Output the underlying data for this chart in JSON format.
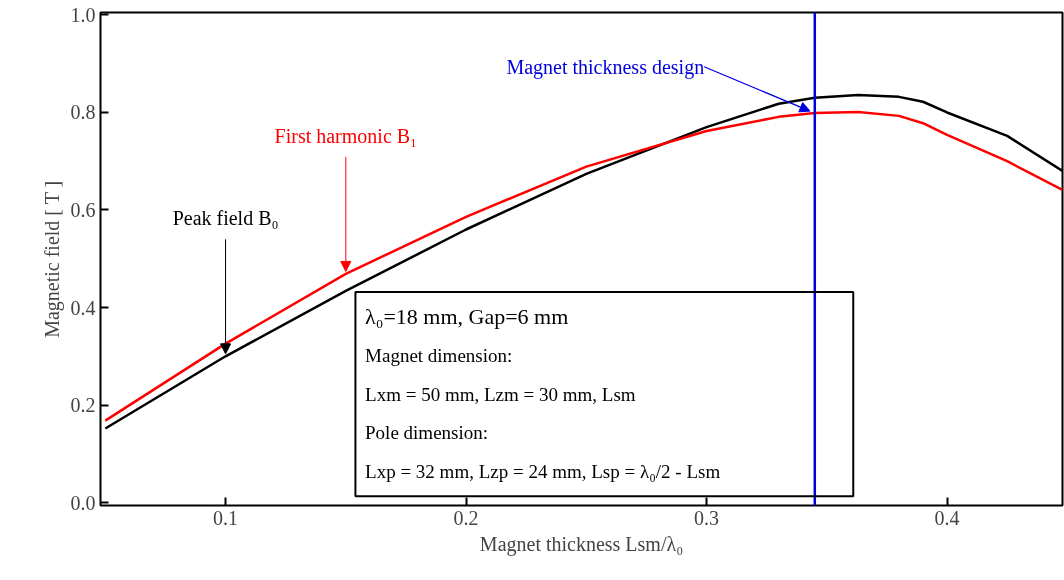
{
  "chart_data": {
    "type": "line",
    "xlabel": "Magnet thickness Lsm/λ₀",
    "ylabel": "Magnetic field [ T ]",
    "x": [
      0.05,
      0.1,
      0.15,
      0.2,
      0.25,
      0.3,
      0.33,
      0.345,
      0.363,
      0.38,
      0.39,
      0.4,
      0.425,
      0.448
    ],
    "series": [
      {
        "name": "Peak field B₀",
        "color": "#000000",
        "values": [
          0.152,
          0.3,
          0.434,
          0.56,
          0.674,
          0.77,
          0.818,
          0.83,
          0.836,
          0.832,
          0.822,
          0.8,
          0.752,
          0.68
        ]
      },
      {
        "name": "First harmonic B₁",
        "color": "#ff0000",
        "values": [
          0.168,
          0.326,
          0.469,
          0.586,
          0.689,
          0.762,
          0.791,
          0.799,
          0.801,
          0.793,
          0.778,
          0.754,
          0.7,
          0.641
        ]
      }
    ],
    "xlim": [
      0.048,
      0.448
    ],
    "ylim": [
      -0.006,
      1.005
    ],
    "xticks": [
      0.1,
      0.2,
      0.3,
      0.4
    ],
    "yticks": [
      {
        "value": 0,
        "label": "0.0"
      },
      {
        "value": 0.2,
        "label": "0.2"
      },
      {
        "value": 0.4,
        "label": "0.4"
      },
      {
        "value": 0.6,
        "label": "0.6"
      },
      {
        "value": 0.8,
        "label": "0.8"
      },
      {
        "value": 1.0,
        "label": "1.0"
      }
    ],
    "ref_lines": [
      {
        "axis": "x",
        "value": 0.345,
        "label": "Magnet thickness design",
        "color": "#0000dd"
      }
    ],
    "annotations": [
      "λ₀=18 mm, Gap=6 mm",
      "Magnet dimension:",
      "Lxm = 50 mm, Lzm = 30 mm, Lsm",
      "Pole dimension:",
      "Lxp = 32 mm, Lzp = 24 mm, Lsp = λ₀/2 - Lsm"
    ],
    "grid": false,
    "marker": "none",
    "line_style": "solid"
  }
}
